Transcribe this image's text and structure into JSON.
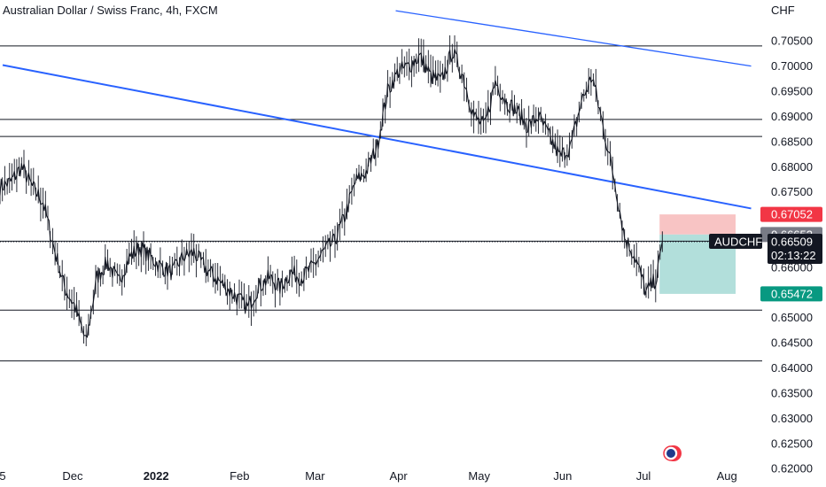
{
  "header": {
    "title": "Australian Dollar / Swiss Franc, 4h, FXCM"
  },
  "colors": {
    "trendline": "#2962ff",
    "level_line": "#131722",
    "price_line": "#131722",
    "stop_zone": "#f8c4c4",
    "target_zone": "#b2dfdb",
    "stop_badge": "#f23645",
    "entry_badge": "#787b86",
    "last_badge": "#131722",
    "target_badge": "#089981",
    "candle": "#131722"
  },
  "chart_data": {
    "type": "line",
    "title": "Australian Dollar / Swiss Franc, 4h, FXCM",
    "currency_label": "CHF",
    "symbol": "AUDCHF",
    "timeframe": "4h",
    "source": "FXCM",
    "ylim": [
      0.6195,
      0.7112
    ],
    "grid": false,
    "yticks": [
      "0.70500",
      "0.70000",
      "0.69500",
      "0.69000",
      "0.68500",
      "0.68000",
      "0.67500",
      "0.67000",
      "0.66500",
      "0.66000",
      "0.65500",
      "0.65000",
      "0.64500",
      "0.64000",
      "0.63500",
      "0.63000",
      "0.62500",
      "0.62000"
    ],
    "ytick_values": [
      0.705,
      0.7,
      0.695,
      0.69,
      0.685,
      0.68,
      0.675,
      0.67,
      0.665,
      0.66,
      0.655,
      0.65,
      0.645,
      0.64,
      0.635,
      0.63,
      0.625,
      0.62
    ],
    "xticks": [
      {
        "label": "5",
        "date": "2021-11-05"
      },
      {
        "label": "Dec",
        "date": "2021-12-01"
      },
      {
        "label": "2022",
        "date": "2022-01-01",
        "bold": true
      },
      {
        "label": "Feb",
        "date": "2022-02-01"
      },
      {
        "label": "Mar",
        "date": "2022-03-01"
      },
      {
        "label": "Apr",
        "date": "2022-04-01"
      },
      {
        "label": "May",
        "date": "2022-05-01"
      },
      {
        "label": "Jun",
        "date": "2022-06-01"
      },
      {
        "label": "Jul",
        "date": "2022-07-01"
      },
      {
        "label": "Aug",
        "date": "2022-08-01"
      }
    ],
    "series": [
      {
        "x": [
          "2021-11-04",
          "2021-11-08",
          "2021-11-12",
          "2021-11-16",
          "2021-11-20",
          "2021-11-24",
          "2021-11-28",
          "2021-12-02",
          "2021-12-06",
          "2021-12-10",
          "2021-12-14",
          "2021-12-18",
          "2021-12-22",
          "2021-12-26",
          "2021-12-30",
          "2022-01-03",
          "2022-01-07",
          "2022-01-11",
          "2022-01-15",
          "2022-01-19",
          "2022-01-23",
          "2022-01-27",
          "2022-01-31",
          "2022-02-04",
          "2022-02-08",
          "2022-02-12",
          "2022-02-16",
          "2022-02-20",
          "2022-02-24",
          "2022-02-28",
          "2022-03-04",
          "2022-03-08",
          "2022-03-12",
          "2022-03-16",
          "2022-03-20",
          "2022-03-24",
          "2022-03-28",
          "2022-04-01",
          "2022-04-05",
          "2022-04-09",
          "2022-04-13",
          "2022-04-17",
          "2022-04-21",
          "2022-04-25",
          "2022-04-29",
          "2022-05-03",
          "2022-05-07",
          "2022-05-11",
          "2022-05-15",
          "2022-05-19",
          "2022-05-23",
          "2022-05-27",
          "2022-05-31",
          "2022-06-04",
          "2022-06-08",
          "2022-06-12",
          "2022-06-16",
          "2022-06-20",
          "2022-06-24",
          "2022-06-28",
          "2022-07-02",
          "2022-07-06",
          "2022-07-08"
        ],
        "y": [
          0.676,
          0.677,
          0.68,
          0.676,
          0.673,
          0.664,
          0.656,
          0.652,
          0.645,
          0.658,
          0.661,
          0.657,
          0.662,
          0.664,
          0.662,
          0.66,
          0.659,
          0.662,
          0.663,
          0.66,
          0.658,
          0.656,
          0.654,
          0.652,
          0.656,
          0.658,
          0.656,
          0.659,
          0.658,
          0.66,
          0.663,
          0.665,
          0.67,
          0.677,
          0.679,
          0.684,
          0.695,
          0.699,
          0.7,
          0.702,
          0.698,
          0.697,
          0.703,
          0.698,
          0.69,
          0.688,
          0.697,
          0.693,
          0.691,
          0.688,
          0.69,
          0.686,
          0.682,
          0.684,
          0.693,
          0.698,
          0.688,
          0.678,
          0.666,
          0.662,
          0.655,
          0.658,
          0.6651
        ]
      }
    ],
    "levels": [
      0.704,
      0.6894,
      0.686,
      0.6652,
      0.6515,
      0.6414
    ],
    "trendlines": [
      {
        "x": [
          "2021-11-05",
          "2022-08-10"
        ],
        "y": [
          0.7002,
          0.6717
        ]
      },
      {
        "x": [
          "2022-03-31",
          "2022-08-10"
        ],
        "y": [
          0.711,
          0.7
        ]
      }
    ],
    "last_price": 0.66509,
    "position": {
      "x_start": "2022-07-07",
      "x_end": "2022-08-10",
      "stop": 0.67052,
      "entry": 0.66652,
      "target": 0.65472
    },
    "price_labels": {
      "stop": "0.67052",
      "entry": "0.66652",
      "last": "0.66509",
      "target": "0.65472",
      "symbol": "AUDCHF",
      "countdown": "02:13:22"
    }
  }
}
